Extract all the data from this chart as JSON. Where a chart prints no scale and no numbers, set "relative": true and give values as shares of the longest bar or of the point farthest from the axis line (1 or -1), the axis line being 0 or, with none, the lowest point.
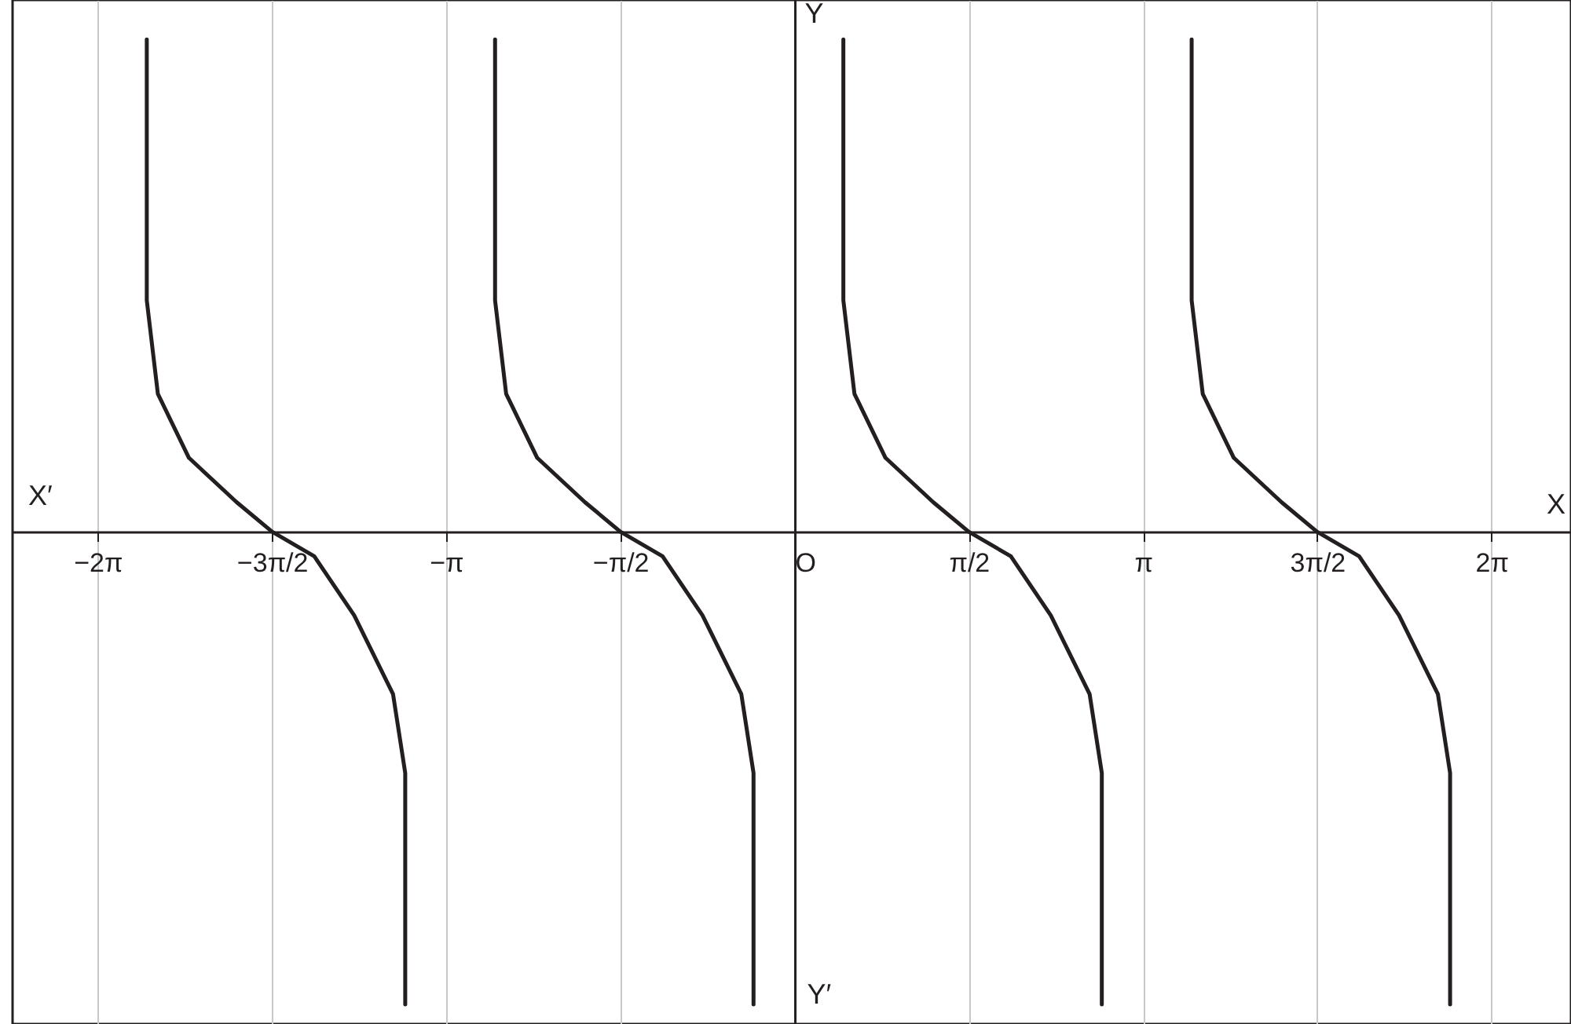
{
  "chart_data": {
    "type": "line",
    "relative": true,
    "xlabel": "X",
    "ylabel": "Y",
    "annotations": [
      "X′",
      "Y′"
    ],
    "xlim": [
      -7.05,
      7.0
    ],
    "xticks": [
      {
        "value": -6.283,
        "label": "−2π"
      },
      {
        "value": -4.712,
        "label": "−3π/2"
      },
      {
        "value": -3.142,
        "label": "−π"
      },
      {
        "value": -1.571,
        "label": "−π/2"
      },
      {
        "value": 0,
        "label": "O"
      },
      {
        "value": 1.571,
        "label": "π/2"
      },
      {
        "value": 3.142,
        "label": "π"
      },
      {
        "value": 4.712,
        "label": "3π/2"
      },
      {
        "value": 6.283,
        "label": "2π"
      }
    ],
    "grid": "x",
    "tick_labels": "x",
    "marker": "none",
    "line_style": "solid",
    "series": [
      {
        "color": "#231f20",
        "x": [
          -5.84,
          -5.84,
          -5.74,
          -5.46,
          -5.03,
          -4.71,
          -4.33,
          -3.97,
          -3.62,
          -3.51,
          -3.51
        ],
        "values": [
          1,
          0.47,
          0.28,
          0.15,
          0.06,
          0,
          -0.05,
          -0.17,
          -0.33,
          -0.49,
          -0.96
        ]
      },
      {
        "color": "#231f20",
        "x": [
          -2.7,
          -2.7,
          -2.6,
          -2.32,
          -1.89,
          -1.57,
          -1.19,
          -0.83,
          -0.48,
          -0.37,
          -0.37
        ],
        "values": [
          1,
          0.47,
          0.28,
          0.15,
          0.06,
          0,
          -0.05,
          -0.17,
          -0.33,
          -0.49,
          -0.96
        ]
      },
      {
        "color": "#231f20",
        "x": [
          0.44,
          0.44,
          0.54,
          0.82,
          1.25,
          1.57,
          1.95,
          2.31,
          2.66,
          2.77,
          2.77
        ],
        "values": [
          1,
          0.47,
          0.28,
          0.15,
          0.06,
          0,
          -0.05,
          -0.17,
          -0.33,
          -0.49,
          -0.96
        ]
      },
      {
        "color": "#231f20",
        "x": [
          3.58,
          3.58,
          3.68,
          3.96,
          4.39,
          4.71,
          5.09,
          5.45,
          5.8,
          5.91,
          5.91
        ],
        "values": [
          1,
          0.47,
          0.28,
          0.15,
          0.06,
          0,
          -0.05,
          -0.17,
          -0.33,
          -0.49,
          -0.96
        ]
      }
    ]
  }
}
